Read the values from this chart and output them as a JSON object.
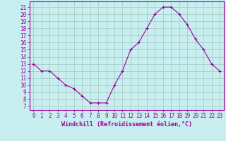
{
  "x": [
    0,
    1,
    2,
    3,
    4,
    5,
    6,
    7,
    8,
    9,
    10,
    11,
    12,
    13,
    14,
    15,
    16,
    17,
    18,
    19,
    20,
    21,
    22,
    23
  ],
  "y": [
    13,
    12,
    12,
    11,
    10,
    9.5,
    8.5,
    7.5,
    7.5,
    7.5,
    10,
    12,
    15,
    16,
    18,
    20,
    21,
    21,
    20,
    18.5,
    16.5,
    15,
    13,
    12
  ],
  "line_color": "#990099",
  "marker": "+",
  "marker_size": 3,
  "bg_color": "#c8eef0",
  "grid_color": "#a0c8c0",
  "xlabel": "Windchill (Refroidissement éolien,°C)",
  "xlabel_color": "#990099",
  "ytick_values": [
    7,
    8,
    9,
    10,
    11,
    12,
    13,
    14,
    15,
    16,
    17,
    18,
    19,
    20,
    21
  ],
  "ylim": [
    6.5,
    21.8
  ],
  "xlim": [
    -0.5,
    23.5
  ],
  "tick_color": "#990099",
  "spine_color": "#990099",
  "tick_fontsize": 5.5,
  "xlabel_fontsize": 6.0
}
